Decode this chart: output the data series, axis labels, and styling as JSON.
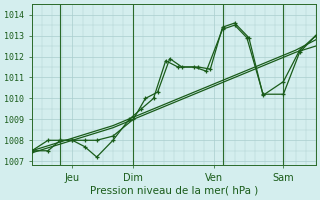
{
  "title": "Pression niveau de la mer( hPa )",
  "ylabel_values": [
    1007,
    1008,
    1009,
    1010,
    1011,
    1012,
    1013,
    1014
  ],
  "ylim": [
    1006.8,
    1014.5
  ],
  "xlim": [
    0,
    7
  ],
  "background_color": "#d4eeee",
  "grid_color": "#aacece",
  "line_color": "#1a5c1a",
  "tick_label_color": "#1a5c1a",
  "x_tick_positions": [
    1,
    2.5,
    4.5,
    6.2
  ],
  "x_tick_labels": [
    "Jeu",
    "Dim",
    "Ven",
    "Sam"
  ],
  "vlines": [
    0.7,
    2.5,
    4.7,
    6.2
  ],
  "series_smooth": {
    "x": [
      0.0,
      0.5,
      1.0,
      1.5,
      2.0,
      2.5,
      3.0,
      3.5,
      4.0,
      4.5,
      5.0,
      5.5,
      6.0,
      6.5,
      7.0
    ],
    "y": [
      1007.4,
      1007.7,
      1008.0,
      1008.3,
      1008.6,
      1009.0,
      1009.4,
      1009.8,
      1010.2,
      1010.6,
      1011.0,
      1011.4,
      1011.8,
      1012.2,
      1012.5
    ]
  },
  "series_smooth2": {
    "x": [
      0.0,
      0.5,
      1.0,
      1.5,
      2.0,
      2.5,
      3.0,
      3.5,
      4.0,
      4.5,
      5.0,
      5.5,
      6.0,
      6.5,
      7.0
    ],
    "y": [
      1007.5,
      1007.8,
      1008.1,
      1008.4,
      1008.7,
      1009.1,
      1009.5,
      1009.9,
      1010.3,
      1010.7,
      1011.1,
      1011.5,
      1011.9,
      1012.3,
      1012.8
    ]
  },
  "series_wiggly1": {
    "x": [
      0.0,
      0.4,
      0.7,
      1.0,
      1.3,
      1.6,
      2.0,
      2.4,
      2.7,
      3.0,
      3.3,
      3.6,
      4.0,
      4.3,
      4.7,
      5.0,
      5.3,
      5.7,
      6.2,
      6.6,
      7.0
    ],
    "y": [
      1007.5,
      1007.5,
      1008.0,
      1008.0,
      1007.7,
      1007.2,
      1008.0,
      1009.0,
      1009.5,
      1010.0,
      1011.8,
      1011.5,
      1011.5,
      1011.3,
      1013.3,
      1013.5,
      1012.9,
      1010.2,
      1010.2,
      1012.2,
      1013.0
    ]
  },
  "series_wiggly2": {
    "x": [
      0.0,
      0.4,
      0.7,
      1.0,
      1.3,
      1.6,
      2.0,
      2.5,
      2.8,
      3.1,
      3.4,
      3.7,
      4.1,
      4.4,
      4.7,
      5.0,
      5.35,
      5.7,
      6.2,
      6.6,
      7.0
    ],
    "y": [
      1007.5,
      1008.0,
      1008.0,
      1008.0,
      1008.0,
      1008.0,
      1008.2,
      1009.0,
      1010.0,
      1010.3,
      1011.9,
      1011.5,
      1011.5,
      1011.4,
      1013.4,
      1013.6,
      1012.9,
      1010.15,
      1010.8,
      1012.3,
      1013.0
    ]
  }
}
